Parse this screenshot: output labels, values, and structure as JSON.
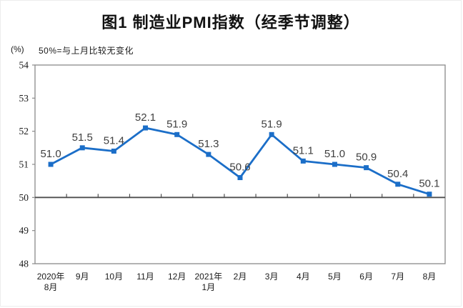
{
  "figure": {
    "title": "图1 制造业PMI指数（经季节调整）",
    "unit_label": "(%)",
    "note": "50%=与上月比较无变化"
  },
  "chart_data": {
    "type": "line",
    "title": "图1 制造业PMI指数（经季节调整）",
    "unit_label": "(%)",
    "annotation": "50%=与上月比较无变化",
    "categories": [
      [
        "2020年",
        "8月"
      ],
      [
        "9月"
      ],
      [
        "10月"
      ],
      [
        "11月"
      ],
      [
        "12月"
      ],
      [
        "2021年",
        "1月"
      ],
      [
        "2月"
      ],
      [
        "3月"
      ],
      [
        "4月"
      ],
      [
        "5月"
      ],
      [
        "6月"
      ],
      [
        "7月"
      ],
      [
        "8月"
      ]
    ],
    "values": [
      51.0,
      51.5,
      51.4,
      52.1,
      51.9,
      51.3,
      50.6,
      51.9,
      51.1,
      51.0,
      50.9,
      50.4,
      50.1
    ],
    "point_labels": [
      "51.0",
      "51.5",
      "51.4",
      "52.1",
      "51.9",
      "51.3",
      "50.6",
      "51.9",
      "51.1",
      "51.0",
      "50.9",
      "50.4",
      "50.1"
    ],
    "ylim": [
      48,
      54
    ],
    "yticks": [
      48,
      49,
      50,
      51,
      52,
      53,
      54
    ],
    "reference_line": 50,
    "grid": false,
    "legend": "none",
    "colors": {
      "line": "#1b6ec8",
      "marker": "#1b6ec8",
      "data_label": "#3f3f3f",
      "axis": "#8a8a8a",
      "reference_line": "#4f4f4f",
      "text": "#1a1a1a"
    }
  }
}
